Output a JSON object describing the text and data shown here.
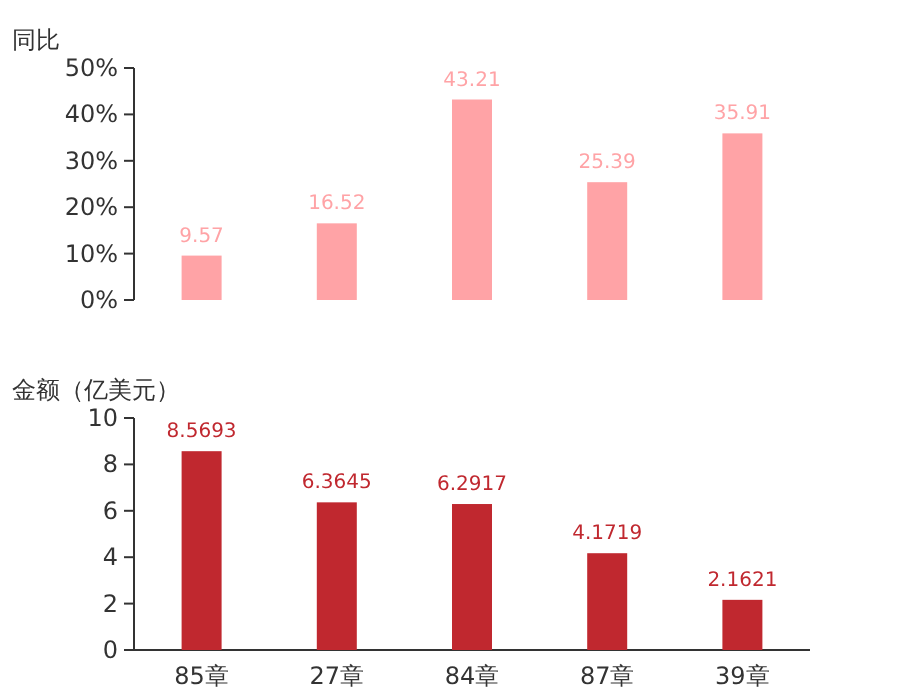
{
  "chart_data": [
    {
      "type": "bar",
      "ylabel": "同比",
      "categories": [
        null,
        null,
        null,
        null,
        null
      ],
      "tick_labels": "y",
      "values": [
        9.57,
        16.52,
        43.21,
        25.39,
        35.91
      ],
      "color": "#ffa3a6",
      "ylim": [
        0,
        50
      ],
      "yticks": [
        {
          "value": 0,
          "label": "0%"
        },
        {
          "value": 10,
          "label": "10%"
        },
        {
          "value": 20,
          "label": "20%"
        },
        {
          "value": 30,
          "label": "30%"
        },
        {
          "value": 40,
          "label": "40%"
        },
        {
          "value": 50,
          "label": "50%"
        }
      ],
      "data_labels": true
    },
    {
      "type": "bar",
      "ylabel": "金额（亿美元）",
      "categories": [
        "85章",
        "27章",
        "84章",
        "87章",
        "39章"
      ],
      "values": [
        8.5693,
        6.3645,
        6.2917,
        4.1719,
        2.1621
      ],
      "color": "#c0282f",
      "ylim": [
        0,
        10
      ],
      "yticks": [
        0,
        2,
        4,
        6,
        8,
        10
      ],
      "data_labels": true
    }
  ]
}
